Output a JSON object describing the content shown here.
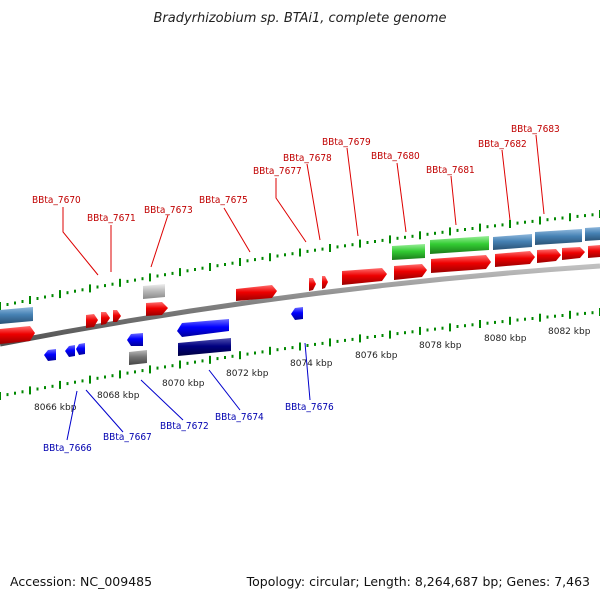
{
  "title": "Bradyrhizobium sp. BTAi1, complete genome",
  "footer": {
    "accession": "Accession: NC_009485",
    "topology": "Topology: circular; Length: 8,264,687 bp; Genes: 7,463"
  },
  "scale_labels": [
    "8066 kbp",
    "8068 kbp",
    "8070 kbp",
    "8072 kbp",
    "8074 kbp",
    "8076 kbp",
    "8078 kbp",
    "8080 kbp",
    "8082 kbp"
  ],
  "gene_labels_top": [
    "BBta_7670",
    "BBta_7671",
    "BBta_7673",
    "BBta_7675",
    "BBta_7677",
    "BBta_7678",
    "BBta_7679",
    "BBta_7680",
    "BBta_7681",
    "BBta_7682",
    "BBta_7683"
  ],
  "gene_labels_bottom": [
    "BBta_7666",
    "BBta_7667",
    "BBta_7672",
    "BBta_7674",
    "BBta_7676"
  ],
  "colors": {
    "forward_gene": "#ee0000",
    "reverse_gene": "#0000ff",
    "trna_green": "#33cc33",
    "rrna_blue": "#4682b4",
    "pseudo_gray": "#bbbbbb",
    "reverse_dark": "#000080",
    "tick_green": "#008800",
    "backbone": "#808080",
    "label_red": "#c00000",
    "label_blue": "#0000b0"
  }
}
